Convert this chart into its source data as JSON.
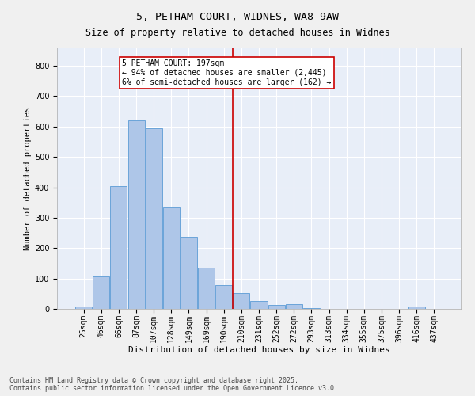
{
  "title": "5, PETHAM COURT, WIDNES, WA8 9AW",
  "subtitle": "Size of property relative to detached houses in Widnes",
  "xlabel": "Distribution of detached houses by size in Widnes",
  "ylabel": "Number of detached properties",
  "bar_labels": [
    "25sqm",
    "46sqm",
    "66sqm",
    "87sqm",
    "107sqm",
    "128sqm",
    "149sqm",
    "169sqm",
    "190sqm",
    "210sqm",
    "231sqm",
    "252sqm",
    "272sqm",
    "293sqm",
    "313sqm",
    "334sqm",
    "355sqm",
    "375sqm",
    "396sqm",
    "416sqm",
    "437sqm"
  ],
  "bar_values": [
    8,
    108,
    403,
    619,
    595,
    336,
    236,
    135,
    79,
    51,
    25,
    12,
    15,
    3,
    1,
    0,
    0,
    0,
    0,
    8,
    0
  ],
  "bar_color": "#aec6e8",
  "bar_edge_color": "#5b9bd5",
  "vline_x_idx": 8.5,
  "vline_color": "#cc0000",
  "annotation_text": "5 PETHAM COURT: 197sqm\n← 94% of detached houses are smaller (2,445)\n6% of semi-detached houses are larger (162) →",
  "annotation_box_color": "#ffffff",
  "annotation_box_edge_color": "#cc0000",
  "ylim": [
    0,
    860
  ],
  "yticks": [
    0,
    100,
    200,
    300,
    400,
    500,
    600,
    700,
    800
  ],
  "plot_bg_color": "#e8eef8",
  "fig_bg_color": "#f0f0f0",
  "grid_color": "#ffffff",
  "footer_text": "Contains HM Land Registry data © Crown copyright and database right 2025.\nContains public sector information licensed under the Open Government Licence v3.0.",
  "title_fontsize": 9.5,
  "subtitle_fontsize": 8.5,
  "xlabel_fontsize": 8,
  "ylabel_fontsize": 7.5,
  "tick_fontsize": 7,
  "annot_fontsize": 7,
  "footer_fontsize": 6
}
